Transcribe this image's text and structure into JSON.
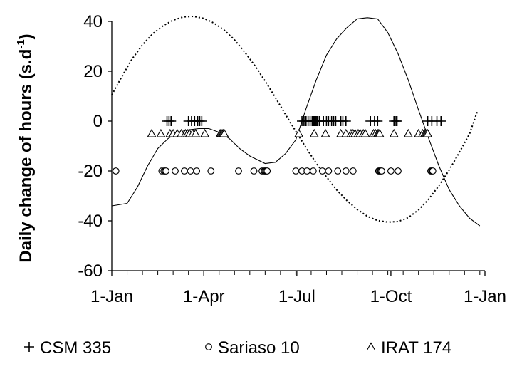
{
  "chart_data": {
    "type": "scatter",
    "title": "",
    "ylabel": "Daily change of hours (s.d",
    "ylabel_superscript": "-1",
    "ylabel_suffix": ")",
    "xlabel": "",
    "xlim": [
      0,
      365
    ],
    "ylim": [
      -60,
      40
    ],
    "x_tick_labels": [
      "1-Jan",
      "1-Apr",
      "1-Jul",
      "1-Oct",
      "1-Jan"
    ],
    "x_tick_values": [
      0,
      90,
      181,
      273,
      365
    ],
    "x_minor_step_days": 15,
    "y_tick_values": [
      -60,
      -40,
      -20,
      0,
      20,
      40
    ],
    "y_tick_labels": [
      "-60",
      "-40",
      "-20",
      "0",
      "20",
      "40"
    ],
    "grid": false,
    "legend_position": "bottom",
    "curves": [
      {
        "style": "dotted",
        "x": [
          0,
          10,
          20,
          30,
          40,
          50,
          60,
          70,
          80,
          90,
          100,
          110,
          120,
          130,
          140,
          150,
          160,
          170,
          180,
          190,
          200,
          210,
          220,
          230,
          240,
          250,
          260,
          270,
          280,
          290,
          300,
          310,
          320,
          330,
          340,
          350,
          358
        ],
        "y": [
          10.5,
          18,
          25,
          30.6,
          35,
          38.2,
          40.5,
          41.8,
          42,
          41.2,
          39.3,
          36.5,
          32.6,
          27.7,
          22.2,
          16.1,
          9.5,
          2.6,
          -4.1,
          -10.7,
          -16.9,
          -22.4,
          -27.6,
          -31.9,
          -35.4,
          -38.2,
          -39.9,
          -40.5,
          -40.3,
          -38.7,
          -35.6,
          -31.3,
          -25.9,
          -19.6,
          -12.5,
          -5,
          4.5
        ]
      },
      {
        "style": "solid",
        "x": [
          0,
          15,
          25,
          35,
          45,
          55,
          65,
          75,
          85,
          95,
          105,
          115,
          125,
          135,
          150,
          160,
          170,
          180,
          190,
          200,
          210,
          220,
          230,
          240,
          250,
          260,
          270,
          280,
          290,
          300,
          310,
          320,
          330,
          340,
          350,
          360
        ],
        "y": [
          -34,
          -33,
          -26.5,
          -18,
          -11,
          -7,
          -4.5,
          -3.5,
          -3,
          -3,
          -4.5,
          -7,
          -11,
          -14,
          -17,
          -16.5,
          -13,
          -7.5,
          5,
          16.5,
          26.5,
          33,
          37.5,
          41,
          41.5,
          41,
          35.5,
          27,
          16.5,
          4.5,
          -7,
          -18,
          -27.5,
          -34,
          -39,
          -42
        ]
      }
    ],
    "series": [
      {
        "name": "CSM 335",
        "marker": "plus",
        "y_level": 0,
        "x": [
          54,
          56,
          58,
          75,
          78,
          81,
          84,
          86,
          88,
          186,
          188,
          190,
          192,
          194,
          196,
          197,
          198,
          199,
          200,
          201,
          203,
          207,
          210,
          212,
          215,
          217,
          219,
          224,
          226,
          229,
          253,
          257,
          260,
          276,
          278,
          279,
          309,
          313,
          318,
          322
        ]
      },
      {
        "name": "Sariaso 10",
        "marker": "circle",
        "y_level": -20,
        "x": [
          4,
          49,
          51,
          52,
          53,
          62,
          71,
          77,
          83,
          97,
          124,
          139,
          147,
          149,
          150,
          151,
          152,
          180,
          186,
          191,
          197,
          206,
          212,
          221,
          229,
          236,
          261,
          262,
          263,
          264,
          273,
          280,
          312,
          313,
          314
        ]
      },
      {
        "name": "IRAT 174",
        "marker": "triangle",
        "y_level": -5,
        "x": [
          39,
          48,
          57,
          60,
          64,
          68,
          72,
          74,
          76,
          79,
          82,
          91,
          106,
          107,
          108,
          109,
          110,
          183,
          198,
          209,
          224,
          229,
          234,
          236,
          238,
          241,
          243,
          246,
          248,
          256,
          258,
          260,
          261,
          262,
          276,
          290,
          300,
          304,
          306,
          307,
          308,
          309
        ]
      }
    ]
  }
}
